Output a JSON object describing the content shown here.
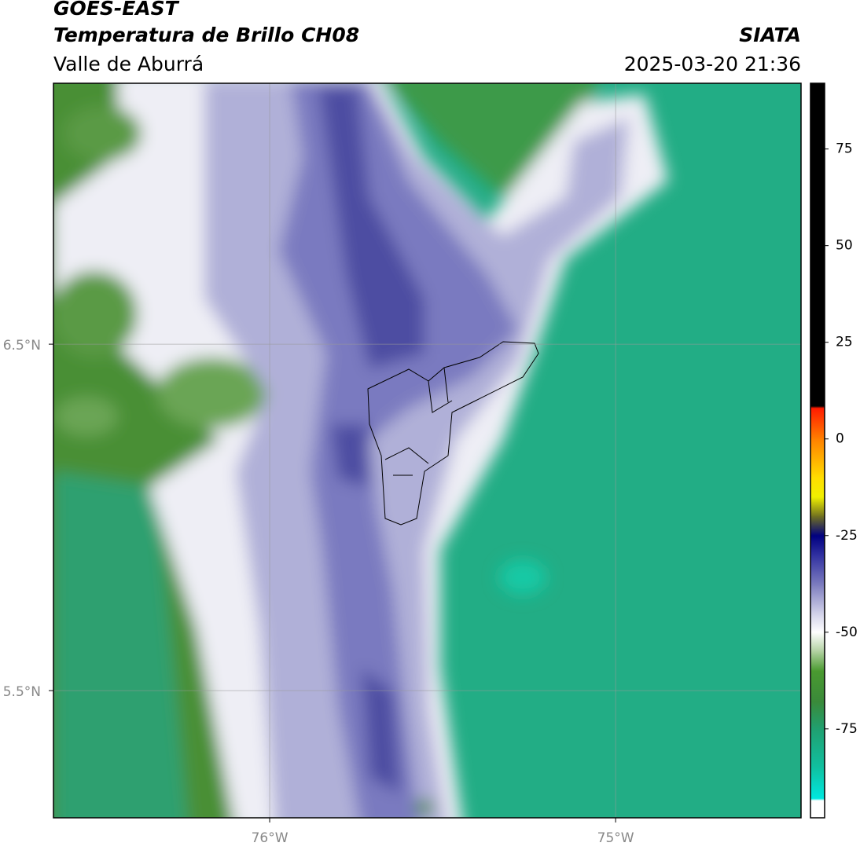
{
  "header": {
    "title": "GOES-EAST",
    "subtitle": "Temperatura de Brillo CH08",
    "region": "Valle de Aburrá",
    "source": "SIATA",
    "timestamp": "2025-03-20 21:36"
  },
  "map": {
    "lonlim": [
      -76.625,
      -74.464
    ],
    "latlim": [
      5.133,
      7.253
    ],
    "lonticks": [
      {
        "value": -76,
        "label": "76°W"
      },
      {
        "value": -75,
        "label": "75°W"
      }
    ],
    "latticks": [
      {
        "value": 6.5,
        "label": "6.5°N"
      },
      {
        "value": 5.5,
        "label": "5.5°N"
      }
    ],
    "grid": true
  },
  "colorbar": {
    "lim": [
      -98,
      92
    ],
    "ticks": [
      75,
      50,
      25,
      0,
      -25,
      -50,
      -75
    ],
    "stops": [
      [
        92,
        "#000000"
      ],
      [
        8.5,
        "#000000"
      ],
      [
        8,
        "#ff1a00"
      ],
      [
        0,
        "#ff8000"
      ],
      [
        -10,
        "#ffdd00"
      ],
      [
        -15,
        "#f0f000"
      ],
      [
        -20,
        "#707020"
      ],
      [
        -25,
        "#000080"
      ],
      [
        -30,
        "#3030a0"
      ],
      [
        -38,
        "#8080c0"
      ],
      [
        -45,
        "#d0d0e8"
      ],
      [
        -50,
        "#ffffff"
      ],
      [
        -55,
        "#b0d0a0"
      ],
      [
        -60,
        "#4a9a30"
      ],
      [
        -68,
        "#3a8a3a"
      ],
      [
        -75,
        "#20a070"
      ],
      [
        -85,
        "#10c0a0"
      ],
      [
        -93,
        "#00e8e0"
      ],
      [
        -93.5,
        "#ffffff"
      ],
      [
        -98,
        "#ffffff"
      ]
    ]
  }
}
